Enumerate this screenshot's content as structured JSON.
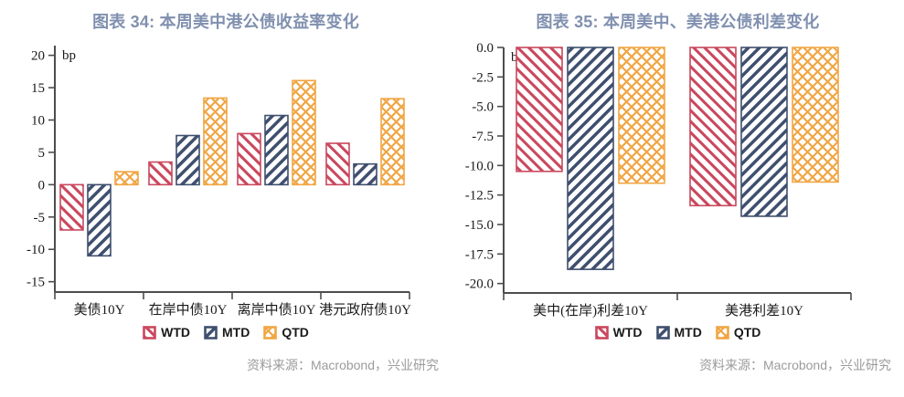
{
  "colors": {
    "title": "#8090AF",
    "source_text": "#9B9B9B",
    "axis": "#4d4d4d",
    "wtd": "#C9485E",
    "mtd": "#3F4F6E",
    "qtd": "#F0A644"
  },
  "figures": [
    {
      "title": "图表 34: 本周美中港公债收益率变化",
      "source": "资料来源：Macrobond，兴业研究"
    },
    {
      "title": "图表 35: 本周美中、美港公债利差变化",
      "source": "资料来源：Macrobond，兴业研究"
    }
  ],
  "chart_data": [
    {
      "type": "bar",
      "title": "图表 34: 本周美中港公债收益率变化",
      "unit_label": "bp",
      "categories": [
        "美债10Y",
        "在岸中债10Y",
        "离岸中债10Y",
        "港元政府债10Y"
      ],
      "series": [
        {
          "name": "WTD",
          "key": "wtd",
          "values": [
            -7,
            3.5,
            7.9,
            6.4
          ]
        },
        {
          "name": "MTD",
          "key": "mtd",
          "values": [
            -11,
            7.6,
            10.7,
            3.2
          ]
        },
        {
          "name": "QTD",
          "key": "qtd",
          "values": [
            2,
            13.4,
            16.1,
            13.3
          ]
        }
      ],
      "ylim": [
        -16.6,
        21.5
      ],
      "ytick_labels": [
        "20",
        "15",
        "10",
        "5",
        "0",
        "-5",
        "-10",
        "-15"
      ],
      "legend_position": "bottom",
      "grid": false
    },
    {
      "type": "bar",
      "title": "图表 35: 本周美中、美港公债利差变化",
      "unit_label": "bp",
      "categories": [
        "美中(在岸)利差10Y",
        "美港利差10Y"
      ],
      "series": [
        {
          "name": "WTD",
          "key": "wtd",
          "values": [
            -10.5,
            -13.4
          ]
        },
        {
          "name": "MTD",
          "key": "mtd",
          "values": [
            -18.8,
            -14.3
          ]
        },
        {
          "name": "QTD",
          "key": "qtd",
          "values": [
            -11.5,
            -11.4
          ]
        }
      ],
      "ylim": [
        -20.8,
        0
      ],
      "ytick_labels": [
        "0.0",
        "-2.5",
        "-5.0",
        "-7.5",
        "-10.0",
        "-12.5",
        "-15.0",
        "-17.5",
        "-20.0"
      ],
      "legend_position": "bottom",
      "grid": false
    }
  ]
}
